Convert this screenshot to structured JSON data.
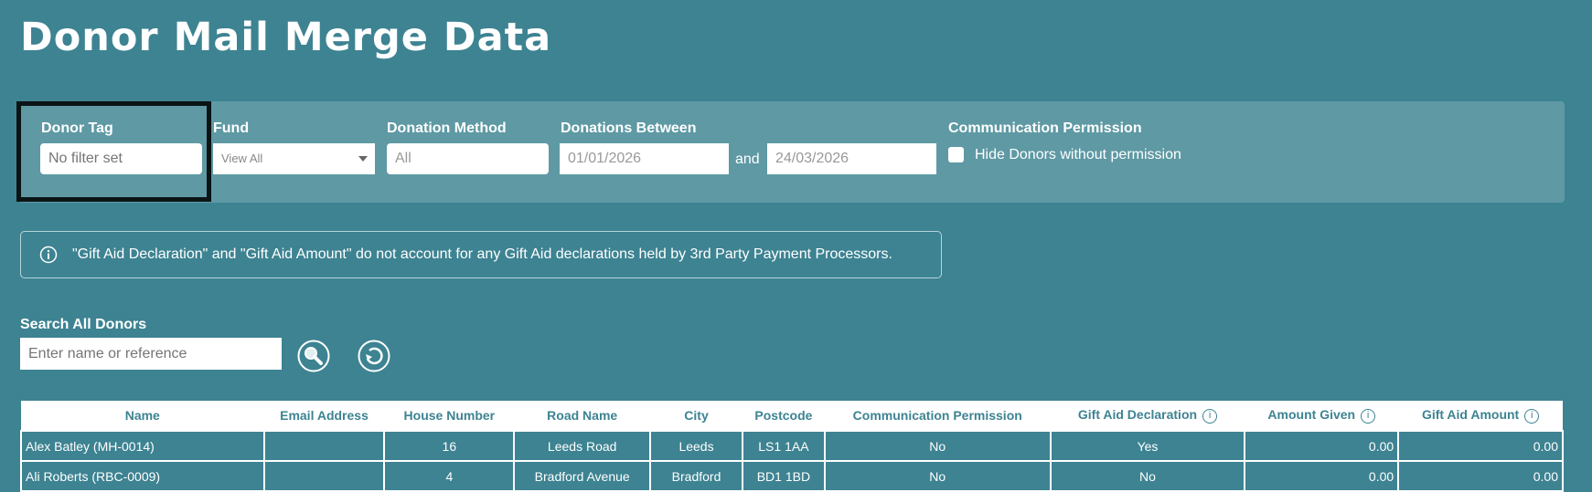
{
  "title": "Donor Mail Merge Data",
  "filters": {
    "donor_tag": {
      "label": "Donor Tag",
      "placeholder": "No filter set"
    },
    "fund": {
      "label": "Fund",
      "value": "View All"
    },
    "donation_method": {
      "label": "Donation Method",
      "value": "All"
    },
    "donations_between": {
      "label": "Donations Between",
      "from": "01/01/2026",
      "and": "and",
      "to": "24/03/2026"
    },
    "communication_permission": {
      "label": "Communication Permission",
      "checkbox_label": "Hide Donors without permission",
      "checked": false
    }
  },
  "info_message": "\"Gift Aid Declaration\" and \"Gift Aid Amount\" do not account for any Gift Aid declarations held by 3rd Party Payment Processors.",
  "search": {
    "label": "Search All Donors",
    "placeholder": "Enter name or reference"
  },
  "table": {
    "columns": [
      "Name",
      "Email Address",
      "House Number",
      "Road Name",
      "City",
      "Postcode",
      "Communication Permission",
      "Gift Aid Declaration",
      "Amount Given",
      "Gift Aid Amount"
    ],
    "rows": [
      [
        "Alex Batley (MH-0014)",
        "",
        "16",
        "Leeds Road",
        "Leeds",
        "LS1 1AA",
        "No",
        "Yes",
        "0.00",
        "0.00"
      ],
      [
        "Ali Roberts (RBC-0009)",
        "",
        "4",
        "Bradford Avenue",
        "Bradford",
        "BD1 1BD",
        "No",
        "No",
        "0.00",
        "0.00"
      ]
    ]
  }
}
